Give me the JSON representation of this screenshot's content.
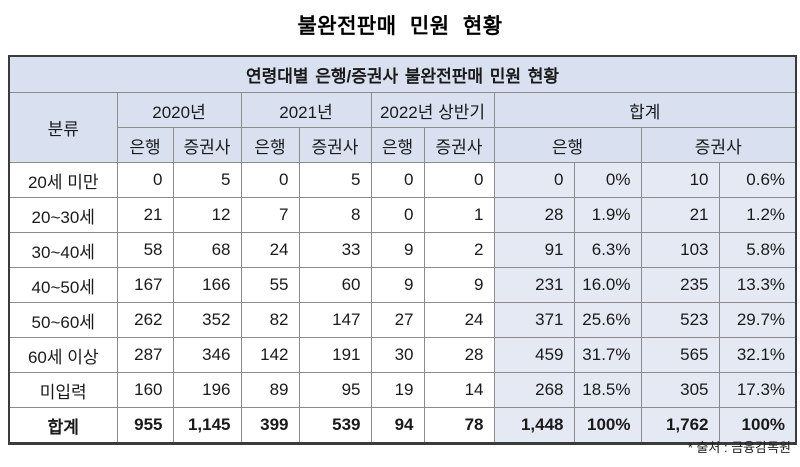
{
  "page_title": "불완전판매 민원 현황",
  "table": {
    "caption": "연령대별 은행/증권사 불완전판매 민원 현황",
    "col_header_category": "분류",
    "col_groups": [
      {
        "label": "2020년",
        "sub": [
          "은행",
          "증권사"
        ]
      },
      {
        "label": "2021년",
        "sub": [
          "은행",
          "증권사"
        ]
      },
      {
        "label": "2022년 상반기",
        "sub": [
          "은행",
          "증권사"
        ]
      },
      {
        "label": "합계",
        "sub": [
          "은행",
          "증권사"
        ]
      }
    ],
    "rows": [
      {
        "label": "20세 미만",
        "cells": [
          "0",
          "5",
          "0",
          "5",
          "0",
          "0",
          "0",
          "0%",
          "10",
          "0.6%"
        ]
      },
      {
        "label": "20~30세",
        "cells": [
          "21",
          "12",
          "7",
          "8",
          "0",
          "1",
          "28",
          "1.9%",
          "21",
          "1.2%"
        ]
      },
      {
        "label": "30~40세",
        "cells": [
          "58",
          "68",
          "24",
          "33",
          "9",
          "2",
          "91",
          "6.3%",
          "103",
          "5.8%"
        ]
      },
      {
        "label": "40~50세",
        "cells": [
          "167",
          "166",
          "55",
          "60",
          "9",
          "9",
          "231",
          "16.0%",
          "235",
          "13.3%"
        ]
      },
      {
        "label": "50~60세",
        "cells": [
          "262",
          "352",
          "82",
          "147",
          "27",
          "24",
          "371",
          "25.6%",
          "523",
          "29.7%"
        ]
      },
      {
        "label": "60세 이상",
        "cells": [
          "287",
          "346",
          "142",
          "191",
          "30",
          "28",
          "459",
          "31.7%",
          "565",
          "32.1%"
        ]
      },
      {
        "label": "미입력",
        "cells": [
          "160",
          "196",
          "89",
          "95",
          "19",
          "14",
          "268",
          "18.5%",
          "305",
          "17.3%"
        ]
      }
    ],
    "total_row": {
      "label": "합계",
      "cells": [
        "955",
        "1,145",
        "399",
        "539",
        "94",
        "78",
        "1,448",
        "100%",
        "1,762",
        "100%"
      ]
    }
  },
  "footer": {
    "source_note": "* 출처 : 금융감독원"
  },
  "colors": {
    "header_bg": "#d9e1f0",
    "total_col_bg": "#e4e9f4",
    "grid_line": "#8c8c8c",
    "outer_border": "#3b3b3b",
    "text": "#1a1a1a"
  }
}
